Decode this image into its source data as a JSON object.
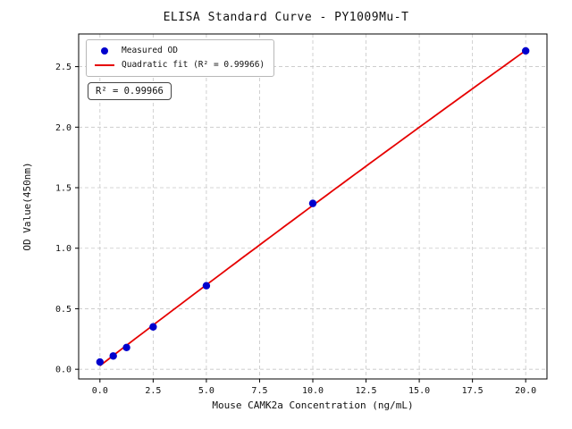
{
  "chart_data": {
    "type": "scatter",
    "title": "ELISA Standard Curve - PY1009Mu-T",
    "xlabel": "Mouse CAMK2a Concentration (ng/mL)",
    "ylabel": "OD Value(450nm)",
    "annotation": "R² = 0.99966",
    "grid": true,
    "legend_position": "upper left",
    "xlim": [
      -1,
      21
    ],
    "ylim": [
      -0.08,
      2.77
    ],
    "xticks": [
      0,
      2.5,
      5,
      7.5,
      10,
      12.5,
      15,
      17.5,
      20
    ],
    "yticks": [
      0,
      0.5,
      1,
      1.5,
      2,
      2.5
    ],
    "series": [
      {
        "name": "Measured OD",
        "type": "scatter",
        "color": "#0000cd",
        "x": [
          0,
          0.625,
          1.25,
          2.5,
          5,
          10,
          20
        ],
        "y": [
          0.06,
          0.11,
          0.18,
          0.35,
          0.69,
          1.37,
          2.63
        ]
      },
      {
        "name": "Quadratic fit (R² = 0.99966)",
        "type": "fit-line",
        "fit": "quadratic",
        "color": "#e60000"
      }
    ]
  }
}
